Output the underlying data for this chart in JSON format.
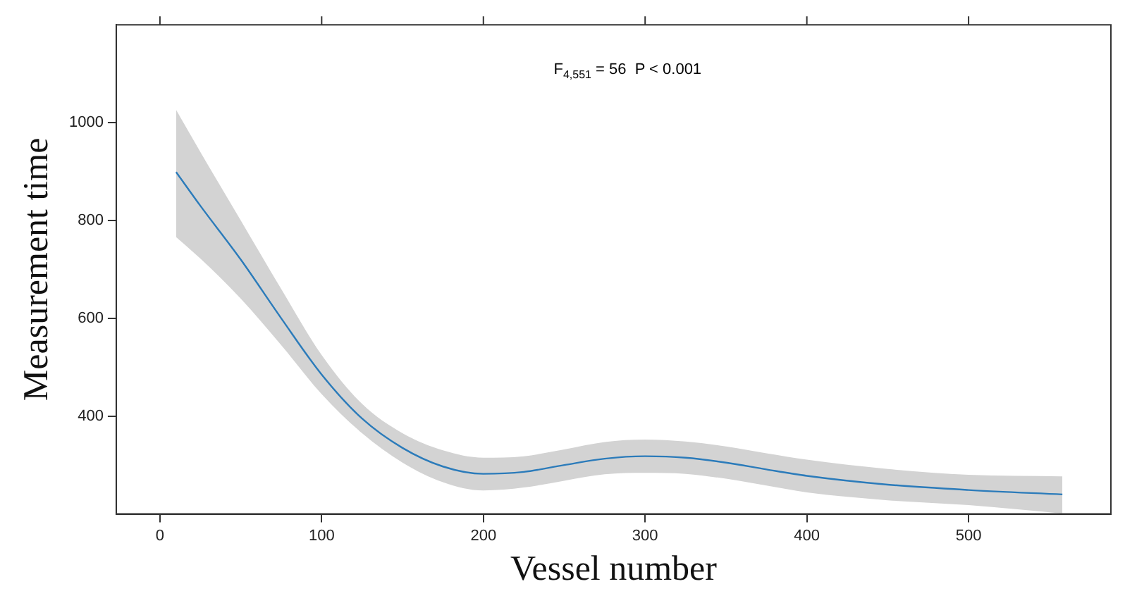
{
  "chart_data": {
    "type": "line",
    "xlabel": "Vessel number",
    "ylabel": "Measurement time",
    "annotations": [
      "F$_{4,551}$ = 56  P < 0.001"
    ],
    "series": [
      {
        "color": "#2b7bba",
        "x": [
          10,
          25,
          50,
          75,
          100,
          125,
          150,
          175,
          200,
          225,
          250,
          275,
          300,
          325,
          350,
          375,
          400,
          450,
          500,
          558
        ],
        "values": [
          899,
          830,
          720,
          600,
          485,
          395,
          335,
          297,
          282,
          286,
          300,
          313,
          318,
          315,
          305,
          291,
          278,
          260,
          249,
          240
        ],
        "lower": [
          766,
          722,
          640,
          545,
          445,
          365,
          305,
          265,
          248,
          254,
          268,
          281,
          284,
          282,
          272,
          258,
          244,
          228,
          218,
          201
        ],
        "upper": [
          1026,
          940,
          800,
          660,
          525,
          425,
          365,
          330,
          315,
          318,
          332,
          347,
          352,
          348,
          338,
          324,
          311,
          292,
          280,
          277
        ]
      }
    ],
    "xlim": [
      -27,
      588
    ],
    "xticks": [
      0,
      100,
      200,
      300,
      400,
      500
    ],
    "ylim": [
      200,
      1200
    ],
    "yticks": [
      400,
      600,
      800,
      1000
    ],
    "grid": false,
    "legend": false,
    "marker": "none",
    "line_style": "solid"
  }
}
